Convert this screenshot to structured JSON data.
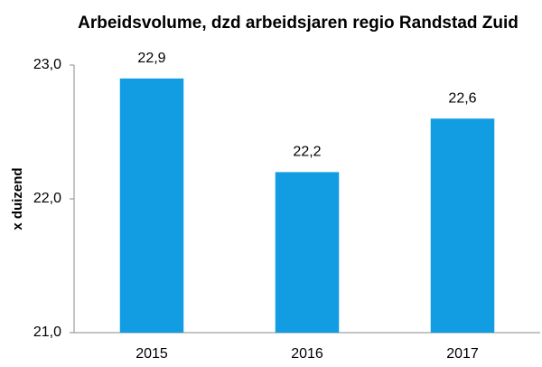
{
  "chart_data": {
    "type": "bar",
    "title": "Arbeidsvolume, dzd arbeidsjaren regio Randstad Zuid",
    "ylabel": "x duizend",
    "categories": [
      "2015",
      "2016",
      "2017"
    ],
    "values": [
      22.9,
      22.2,
      22.6
    ],
    "value_labels": [
      "22,9",
      "22,2",
      "22,6"
    ],
    "color": "#129de2",
    "ylim": [
      21,
      23
    ],
    "yticks": [
      {
        "value": 21,
        "label": "21,0"
      },
      {
        "value": 22,
        "label": "22,0"
      },
      {
        "value": 23,
        "label": "23,0"
      }
    ],
    "grid": false
  }
}
